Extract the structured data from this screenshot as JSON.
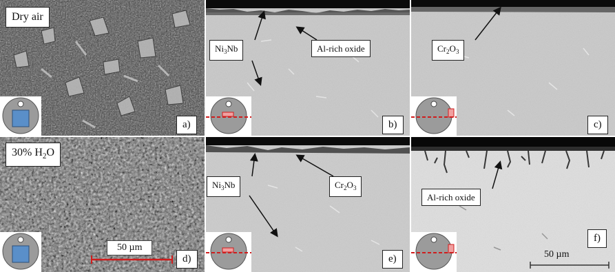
{
  "panels": {
    "a": {
      "label": "a)",
      "condition": "Dry air"
    },
    "b": {
      "label": "b)"
    },
    "c": {
      "label": "c)"
    },
    "d": {
      "label": "d)",
      "condition_prefix": "30% H",
      "condition_sub": "2",
      "condition_suffix": "O",
      "scale": "50 µm"
    },
    "e": {
      "label": "e)"
    },
    "f": {
      "label": "f)",
      "scale": "50 µm"
    }
  },
  "annotations": {
    "ni3nb": {
      "prefix": "Ni",
      "sub": "3",
      "suffix": "Nb"
    },
    "al_oxide": "Al-rich oxide",
    "cr2o3": {
      "prefix": "Cr",
      "sub1": "2",
      "mid": "O",
      "sub2": "3"
    }
  },
  "colors": {
    "oxide_dark": "#0b0b0b",
    "substrate_light": "#c9c9c9",
    "marker_red": "#d01c1c",
    "sample_blue": "#5a8fc9",
    "sample_grey": "#9b9b9b"
  }
}
